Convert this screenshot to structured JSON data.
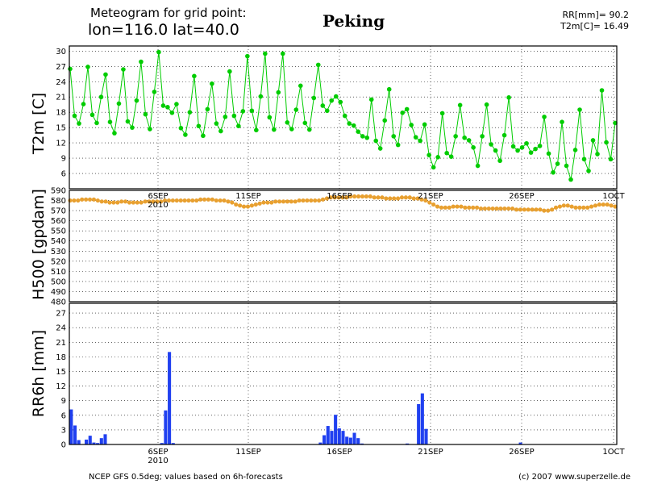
{
  "header": {
    "line1": "Meteogram for grid point:",
    "line2": "lon=116.0 lat=40.0",
    "city": "Peking",
    "rr_total": "RR[mm]= 90.2",
    "t2m_mean": "T2m[C]= 16.49"
  },
  "footer": {
    "source": "NCEP GFS 0.5deg; values based on 6h-forecasts",
    "copyright": "(c) 2007 www.superzelle.de"
  },
  "colors": {
    "temperature": "#00cc00",
    "geopotential": "#e8a030",
    "precipitation": "#2040f0",
    "grid": "#000000"
  },
  "x_axis": {
    "date_labels": [
      "6SEP",
      "11SEP",
      "16SEP",
      "21SEP",
      "26SEP",
      "1OCT"
    ],
    "year_label": "2010"
  },
  "chart_data": [
    {
      "type": "line",
      "ylabel": "T2m [C]",
      "ylim": [
        3,
        31
      ],
      "yticks": [
        6,
        9,
        12,
        15,
        18,
        21,
        24,
        27,
        30
      ],
      "grid": true,
      "series": [
        {
          "values": [
            26.5,
            17.3,
            15.8,
            19.6,
            26.9,
            17.5,
            15.9,
            21.0,
            25.4,
            16.1,
            13.9,
            19.7,
            26.4,
            16.2,
            15.0,
            20.3,
            27.9,
            17.6,
            14.7,
            22.0,
            29.8,
            19.3,
            19.0,
            17.9,
            19.6,
            14.9,
            13.6,
            18.0,
            25.1,
            15.3,
            13.4,
            18.6,
            23.6,
            15.8,
            14.3,
            17.1,
            26.0,
            17.3,
            15.3,
            18.2,
            29.0,
            18.3,
            14.5,
            21.1,
            29.5,
            17.0,
            14.6,
            21.9,
            29.5,
            16.0,
            14.7,
            18.5,
            23.2,
            15.9,
            14.6,
            20.8,
            27.3,
            19.3,
            18.3,
            20.3,
            21.1,
            20.0,
            17.3,
            15.8,
            15.4,
            14.2,
            13.3,
            13.0,
            20.5,
            12.4,
            10.9,
            16.4,
            22.5,
            13.3,
            11.6,
            17.9,
            18.6,
            15.5,
            13.1,
            12.4,
            15.6,
            9.6,
            7.2,
            9.2,
            17.8,
            10.0,
            9.3,
            13.3,
            19.4,
            13.0,
            12.5,
            11.1,
            7.5,
            13.3,
            19.5,
            11.7,
            10.5,
            8.5,
            13.5,
            20.9,
            11.3,
            10.5,
            11.1,
            11.9,
            10.1,
            10.8,
            11.4,
            17.1,
            9.9,
            6.2,
            7.9,
            16.1,
            7.5,
            4.8,
            10.6,
            18.5,
            8.8,
            6.5,
            12.5,
            9.8,
            22.3,
            12.1,
            8.8,
            15.9
          ]
        }
      ]
    },
    {
      "type": "line",
      "ylabel": "H500 [gpdam]",
      "ylim": [
        480,
        590
      ],
      "yticks": [
        480,
        490,
        500,
        510,
        520,
        530,
        540,
        550,
        560,
        570,
        580,
        590
      ],
      "grid": true,
      "series": [
        {
          "values": [
            580,
            580,
            580,
            581,
            581,
            581,
            581,
            580,
            579,
            579,
            578,
            578,
            578,
            579,
            579,
            578,
            578,
            578,
            578,
            579,
            579,
            579,
            579,
            579,
            580,
            580,
            580,
            580,
            580,
            580,
            580,
            580,
            580,
            581,
            581,
            581,
            581,
            580,
            580,
            580,
            579,
            578,
            576,
            575,
            574,
            574,
            575,
            576,
            577,
            578,
            578,
            578,
            579,
            579,
            579,
            579,
            579,
            579,
            580,
            580,
            580,
            580,
            580,
            580,
            581,
            582,
            583,
            583,
            583,
            583,
            583,
            584,
            584,
            584,
            584,
            584,
            584,
            583,
            583,
            583,
            582,
            582,
            582,
            582,
            583,
            583,
            583,
            582,
            582,
            581,
            580,
            578,
            576,
            574,
            573,
            573,
            573,
            574,
            574,
            574,
            573,
            573,
            573,
            573,
            572,
            572,
            572,
            572,
            572,
            572,
            572,
            572,
            572,
            571,
            571,
            571,
            571,
            571,
            571,
            571,
            570,
            570,
            571,
            573,
            574,
            575,
            575,
            574,
            573,
            573,
            573,
            573,
            574,
            575,
            576,
            576,
            576,
            575,
            574
          ]
        }
      ]
    },
    {
      "type": "bar",
      "ylabel": "RR6h [mm]",
      "ylim": [
        0,
        29
      ],
      "yticks": [
        0,
        3,
        6,
        9,
        12,
        15,
        18,
        21,
        24,
        27
      ],
      "grid": true,
      "series": [
        {
          "values": [
            7.2,
            3.9,
            0.9,
            0,
            1.0,
            1.8,
            0.4,
            0.3,
            1.3,
            2.1,
            0,
            0,
            0,
            0,
            0,
            0,
            0,
            0,
            0,
            0,
            0,
            0,
            0,
            0,
            0.3,
            7.0,
            19.0,
            0.3,
            0,
            0,
            0,
            0,
            0,
            0,
            0,
            0,
            0,
            0,
            0,
            0,
            0,
            0,
            0,
            0,
            0,
            0,
            0,
            0,
            0,
            0,
            0,
            0,
            0,
            0,
            0,
            0,
            0,
            0,
            0,
            0,
            0,
            0,
            0,
            0,
            0,
            0,
            0.4,
            1.9,
            3.8,
            2.8,
            6.1,
            3.3,
            2.8,
            1.6,
            1.4,
            2.4,
            1.3,
            0.2,
            0,
            0,
            0,
            0,
            0,
            0,
            0,
            0,
            0,
            0,
            0,
            0.2,
            0,
            0,
            8.3,
            10.5,
            3.2,
            0,
            0,
            0,
            0,
            0,
            0,
            0,
            0,
            0,
            0,
            0,
            0,
            0,
            0,
            0,
            0,
            0,
            0,
            0,
            0,
            0,
            0,
            0,
            0,
            0.4,
            0,
            0,
            0,
            0,
            0,
            0,
            0,
            0,
            0,
            0,
            0,
            0,
            0,
            0,
            0,
            0,
            0,
            0,
            0,
            0,
            0,
            0,
            0,
            0,
            0
          ]
        }
      ]
    }
  ]
}
